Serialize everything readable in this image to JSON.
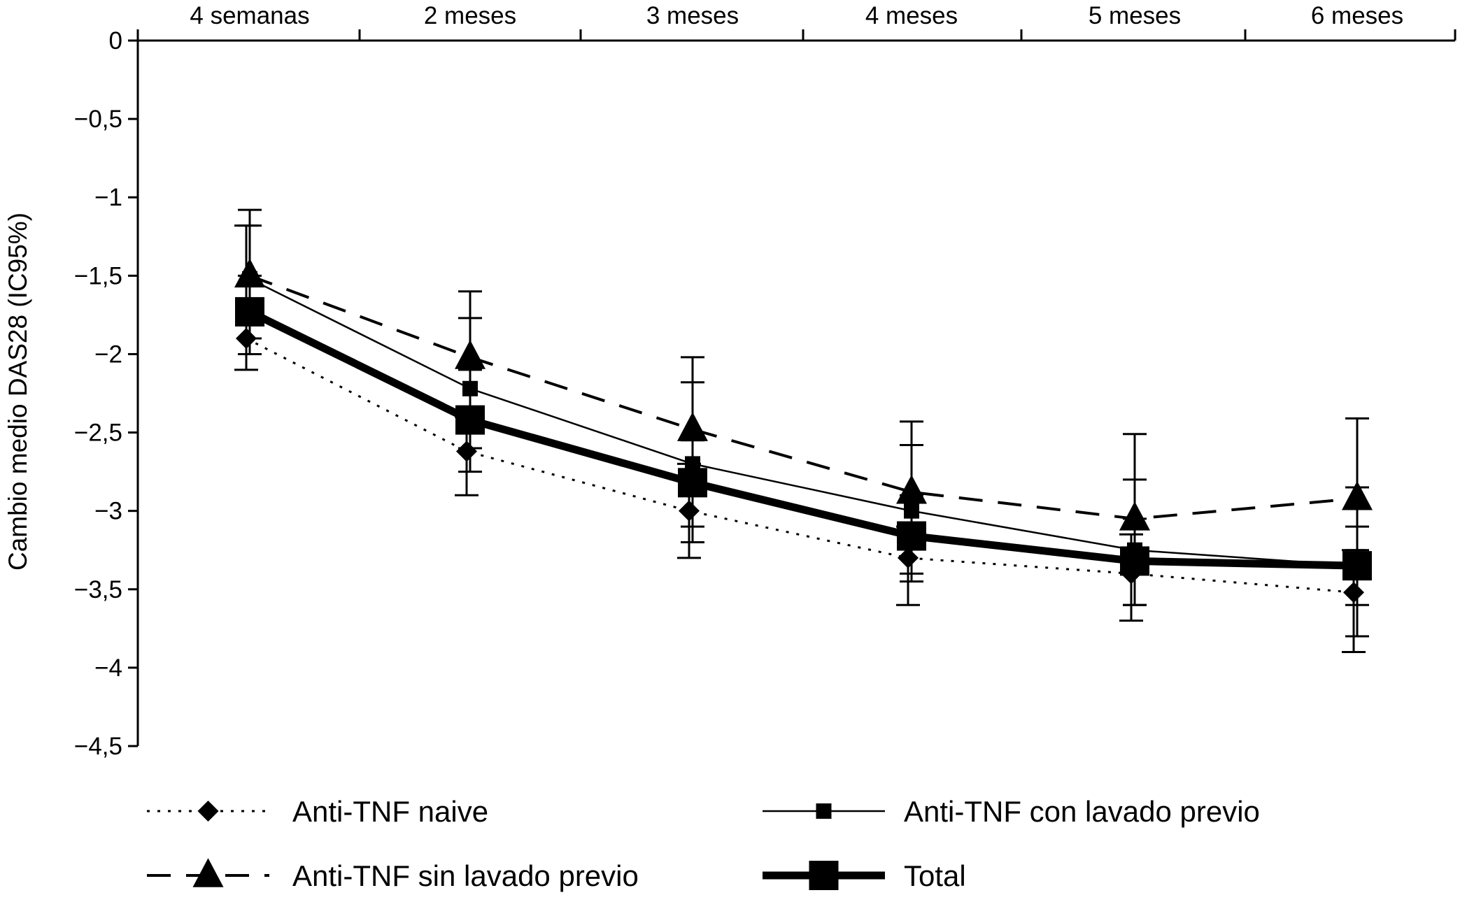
{
  "chart_data": {
    "type": "line",
    "title": "",
    "xlabel": "",
    "ylabel": "Cambio medio DAS28 (IC95%)",
    "ylim": [
      -4.5,
      0
    ],
    "yticks": [
      0,
      -0.5,
      -1,
      -1.5,
      -2,
      -2.5,
      -3,
      -3.5,
      -4,
      -4.5
    ],
    "ytick_labels": [
      "0",
      "−0,5",
      "−1",
      "−1,5",
      "−2",
      "−2,5",
      "−3",
      "−3,5",
      "−4",
      "−4,5"
    ],
    "categories": [
      "4 semanas",
      "2 meses",
      "3 meses",
      "4 meses",
      "5 meses",
      "6 meses"
    ],
    "series": [
      {
        "name": "Anti-TNF naive",
        "marker": "diamond",
        "line": "dotted",
        "values": [
          -1.9,
          -2.62,
          -3.0,
          -3.3,
          -3.4,
          -3.52
        ],
        "ci_low": [
          -2.1,
          -2.9,
          -3.3,
          -3.6,
          -3.7,
          -3.9
        ],
        "ci_high": [
          -1.18,
          -2.4,
          -2.7,
          -3.1,
          -3.15,
          -3.25
        ]
      },
      {
        "name": "Anti-TNF con lavado previo",
        "marker": "square-small",
        "line": "solid-thin",
        "values": [
          -1.52,
          -2.22,
          -2.7,
          -3.0,
          -3.25,
          -3.35
        ],
        "ci_low": [
          -1.9,
          -2.6,
          -3.2,
          -3.4,
          -3.6,
          -3.8
        ],
        "ci_high": [
          -1.18,
          -1.77,
          -2.18,
          -2.58,
          -2.8,
          -2.85
        ]
      },
      {
        "name": "Anti-TNF sin lavado previo",
        "marker": "triangle",
        "line": "dashed",
        "values": [
          -1.5,
          -2.02,
          -2.48,
          -2.88,
          -3.05,
          -2.92
        ],
        "ci_low": [
          -1.9,
          -2.45,
          -2.85,
          -3.2,
          -3.35,
          -3.25
        ],
        "ci_high": [
          -1.08,
          -1.6,
          -2.02,
          -2.43,
          -2.51,
          -2.41
        ]
      },
      {
        "name": "Total",
        "marker": "square-large",
        "line": "solid-thick",
        "values": [
          -1.73,
          -2.42,
          -2.82,
          -3.16,
          -3.32,
          -3.35
        ],
        "ci_low": [
          -2.0,
          -2.75,
          -3.1,
          -3.45,
          -3.6,
          -3.6
        ],
        "ci_high": [
          -1.5,
          -2.1,
          -2.55,
          -2.9,
          -3.05,
          -3.1
        ]
      }
    ],
    "legend": {
      "placement": "bottom",
      "items": [
        "Anti-TNF naive",
        "Anti-TNF con lavado previo",
        "Anti-TNF sin lavado previo",
        "Total"
      ]
    }
  }
}
